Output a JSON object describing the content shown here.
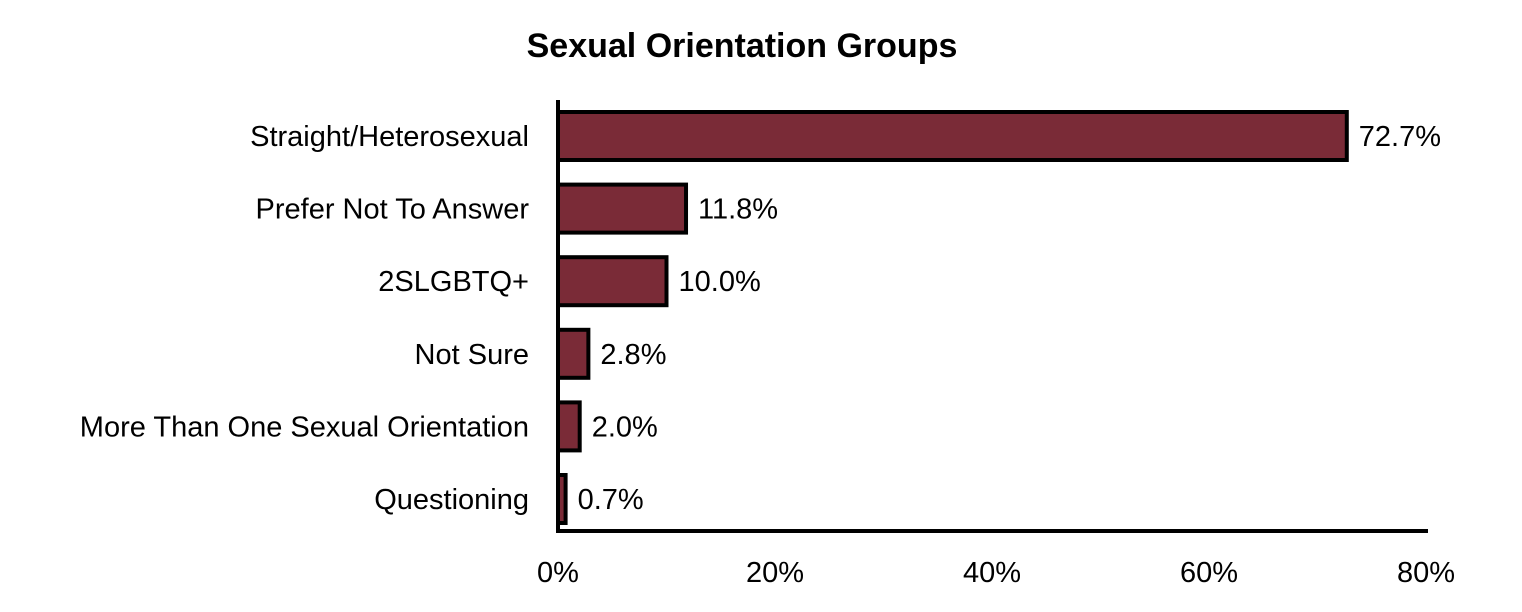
{
  "chart_data": {
    "type": "bar",
    "orientation": "horizontal",
    "title": "Sexual Orientation Groups",
    "categories": [
      "Straight/Heterosexual",
      "Prefer Not To Answer",
      "2SLGBTQ+",
      "Not Sure",
      "More Than One Sexual Orientation",
      "Questioning"
    ],
    "values": [
      72.7,
      11.8,
      10.0,
      2.8,
      2.0,
      0.7
    ],
    "value_labels": [
      "72.7%",
      "11.8%",
      "10.0%",
      "2.8%",
      "2.0%",
      "0.7%"
    ],
    "xlim": [
      0,
      80
    ],
    "xticks": [
      0,
      20,
      40,
      60,
      80
    ],
    "xtick_labels": [
      "0%",
      "20%",
      "40%",
      "60%",
      "80%"
    ],
    "grid": false,
    "legend": "none",
    "bar_color": "#7a2b37",
    "bar_edge_color": "#000000"
  }
}
